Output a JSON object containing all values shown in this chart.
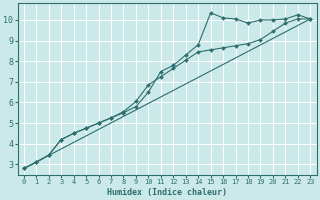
{
  "title": "",
  "xlabel": "Humidex (Indice chaleur)",
  "ylabel": "",
  "xlim": [
    -0.5,
    23.5
  ],
  "ylim": [
    2.5,
    10.8
  ],
  "xticks": [
    0,
    1,
    2,
    3,
    4,
    5,
    6,
    7,
    8,
    9,
    10,
    11,
    12,
    13,
    14,
    15,
    16,
    17,
    18,
    19,
    20,
    21,
    22,
    23
  ],
  "yticks": [
    3,
    4,
    5,
    6,
    7,
    8,
    9,
    10
  ],
  "bg_color": "#cce9e9",
  "grid_color": "#ffffff",
  "line_color": "#2d6e6e",
  "series1_x": [
    0,
    1,
    2,
    3,
    4,
    5,
    6,
    7,
    8,
    9,
    10,
    11,
    12,
    13,
    14,
    15,
    16,
    17,
    18,
    19,
    20,
    21,
    22,
    23
  ],
  "series1_y": [
    2.8,
    3.1,
    3.45,
    4.2,
    4.5,
    4.75,
    5.0,
    5.25,
    5.5,
    5.8,
    6.5,
    7.5,
    7.8,
    8.3,
    8.8,
    10.35,
    10.1,
    10.05,
    9.85,
    10.0,
    10.0,
    10.05,
    10.25,
    10.05
  ],
  "series2_x": [
    0,
    1,
    2,
    3,
    4,
    5,
    6,
    7,
    8,
    9,
    10,
    11,
    12,
    13,
    14,
    15,
    16,
    17,
    18,
    19,
    20,
    21,
    22,
    23
  ],
  "series2_y": [
    2.8,
    3.1,
    3.45,
    4.2,
    4.5,
    4.75,
    5.0,
    5.25,
    5.55,
    6.05,
    6.85,
    7.25,
    7.65,
    8.05,
    8.45,
    8.55,
    8.65,
    8.75,
    8.85,
    9.05,
    9.45,
    9.85,
    10.05,
    10.05
  ],
  "series3_x": [
    0,
    23
  ],
  "series3_y": [
    2.8,
    10.05
  ]
}
